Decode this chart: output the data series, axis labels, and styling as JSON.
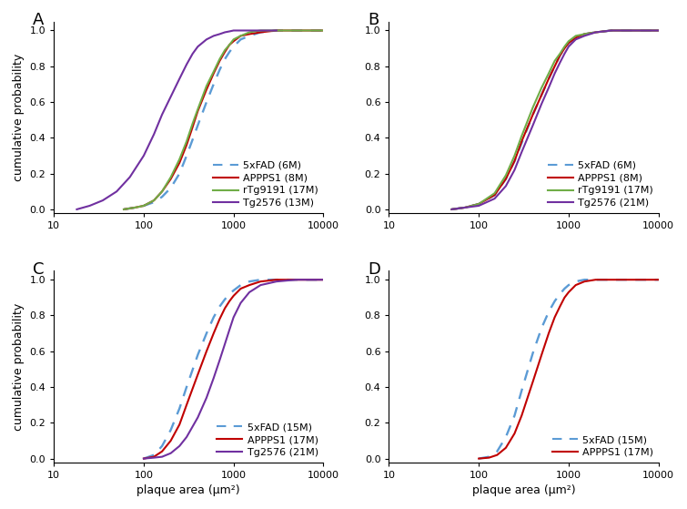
{
  "xlim": [
    10,
    10000
  ],
  "ylim": [
    -0.02,
    1.05
  ],
  "yticks": [
    0,
    0.2,
    0.4,
    0.6,
    0.8,
    1.0
  ],
  "ylabel": "cumulative probability",
  "xlabel": "plaque area (μm²)",
  "panel_A": {
    "lines": [
      {
        "label": "5xFAD (6M)",
        "color": "#5B9BD5",
        "linestyle": "dashed",
        "x": [
          60,
          80,
          100,
          130,
          160,
          200,
          250,
          300,
          350,
          400,
          500,
          600,
          700,
          800,
          900,
          1000,
          1200,
          1500,
          2000,
          3000,
          5000,
          8000,
          10000
        ],
        "y": [
          0,
          0.01,
          0.02,
          0.04,
          0.07,
          0.12,
          0.2,
          0.3,
          0.39,
          0.47,
          0.6,
          0.7,
          0.78,
          0.84,
          0.88,
          0.91,
          0.95,
          0.97,
          0.99,
          1.0,
          1.0,
          1.0,
          1.0
        ]
      },
      {
        "label": "APPPS1 (8M)",
        "color": "#C00000",
        "linestyle": "solid",
        "x": [
          60,
          80,
          100,
          130,
          160,
          200,
          250,
          300,
          350,
          400,
          500,
          600,
          700,
          800,
          900,
          1000,
          1200,
          1500,
          2000,
          3000,
          5000,
          8000,
          10000
        ],
        "y": [
          0,
          0.01,
          0.02,
          0.05,
          0.1,
          0.17,
          0.26,
          0.36,
          0.46,
          0.55,
          0.67,
          0.76,
          0.83,
          0.88,
          0.92,
          0.94,
          0.97,
          0.98,
          0.99,
          1.0,
          1.0,
          1.0,
          1.0
        ]
      },
      {
        "label": "rTg9191 (17M)",
        "color": "#70AD47",
        "linestyle": "solid",
        "x": [
          60,
          80,
          100,
          130,
          160,
          200,
          250,
          300,
          350,
          400,
          500,
          600,
          700,
          800,
          900,
          1000,
          1200,
          1500,
          2000,
          3000,
          5000,
          8000,
          10000
        ],
        "y": [
          0,
          0.01,
          0.02,
          0.05,
          0.1,
          0.18,
          0.28,
          0.38,
          0.48,
          0.56,
          0.69,
          0.77,
          0.84,
          0.89,
          0.92,
          0.95,
          0.97,
          0.99,
          1.0,
          1.0,
          1.0,
          1.0,
          1.0
        ]
      },
      {
        "label": "Tg2576 (13M)",
        "color": "#7030A0",
        "linestyle": "solid",
        "x": [
          18,
          25,
          35,
          50,
          70,
          100,
          130,
          160,
          200,
          250,
          300,
          350,
          400,
          500,
          600,
          700,
          800,
          900,
          1000,
          1200,
          1500,
          2000,
          3000
        ],
        "y": [
          0,
          0.02,
          0.05,
          0.1,
          0.18,
          0.3,
          0.42,
          0.53,
          0.63,
          0.73,
          0.81,
          0.87,
          0.91,
          0.95,
          0.97,
          0.98,
          0.99,
          0.995,
          1.0,
          1.0,
          1.0,
          1.0,
          1.0
        ]
      }
    ]
  },
  "panel_B": {
    "lines": [
      {
        "label": "5xFAD (6M)",
        "color": "#5B9BD5",
        "linestyle": "dashed",
        "x": [
          50,
          70,
          100,
          150,
          200,
          250,
          300,
          400,
          500,
          600,
          700,
          800,
          900,
          1000,
          1200,
          1500,
          2000,
          3000,
          5000,
          8000,
          10000
        ],
        "y": [
          0,
          0.01,
          0.03,
          0.08,
          0.17,
          0.27,
          0.37,
          0.53,
          0.64,
          0.73,
          0.8,
          0.86,
          0.9,
          0.93,
          0.96,
          0.98,
          0.99,
          1.0,
          1.0,
          1.0,
          1.0
        ]
      },
      {
        "label": "APPPS1 (8M)",
        "color": "#C00000",
        "linestyle": "solid",
        "x": [
          50,
          70,
          100,
          150,
          200,
          250,
          300,
          400,
          500,
          600,
          700,
          800,
          900,
          1000,
          1200,
          1500,
          2000,
          3000,
          5000,
          8000,
          10000
        ],
        "y": [
          0,
          0.01,
          0.03,
          0.08,
          0.17,
          0.27,
          0.38,
          0.53,
          0.64,
          0.73,
          0.8,
          0.86,
          0.9,
          0.93,
          0.96,
          0.98,
          0.99,
          1.0,
          1.0,
          1.0,
          1.0
        ]
      },
      {
        "label": "rTg9191 (17M)",
        "color": "#70AD47",
        "linestyle": "solid",
        "x": [
          50,
          70,
          100,
          150,
          200,
          250,
          300,
          400,
          500,
          600,
          700,
          800,
          900,
          1000,
          1200,
          1500,
          2000,
          3000,
          5000,
          8000,
          10000
        ],
        "y": [
          0,
          0.01,
          0.03,
          0.09,
          0.19,
          0.3,
          0.41,
          0.57,
          0.68,
          0.76,
          0.83,
          0.87,
          0.91,
          0.94,
          0.97,
          0.98,
          0.99,
          1.0,
          1.0,
          1.0,
          1.0
        ]
      },
      {
        "label": "Tg2576 (21M)",
        "color": "#7030A0",
        "linestyle": "solid",
        "x": [
          50,
          70,
          100,
          150,
          200,
          250,
          300,
          400,
          500,
          600,
          700,
          800,
          900,
          1000,
          1200,
          1500,
          2000,
          3000,
          5000,
          8000,
          10000
        ],
        "y": [
          0,
          0.01,
          0.02,
          0.06,
          0.13,
          0.22,
          0.32,
          0.47,
          0.59,
          0.68,
          0.76,
          0.82,
          0.87,
          0.91,
          0.95,
          0.97,
          0.99,
          1.0,
          1.0,
          1.0,
          1.0
        ]
      }
    ]
  },
  "panel_C": {
    "lines": [
      {
        "label": "5xFAD (15M)",
        "color": "#5B9BD5",
        "linestyle": "dashed",
        "x": [
          100,
          130,
          160,
          200,
          250,
          300,
          400,
          500,
          600,
          700,
          800,
          900,
          1000,
          1200,
          1500,
          2000,
          3000,
          5000,
          8000,
          10000
        ],
        "y": [
          0,
          0.02,
          0.07,
          0.16,
          0.28,
          0.4,
          0.58,
          0.7,
          0.79,
          0.85,
          0.89,
          0.92,
          0.94,
          0.97,
          0.99,
          1.0,
          1.0,
          1.0,
          1.0,
          1.0
        ]
      },
      {
        "label": "APPPS1 (17M)",
        "color": "#C00000",
        "linestyle": "solid",
        "x": [
          100,
          130,
          160,
          200,
          250,
          300,
          400,
          500,
          600,
          700,
          800,
          900,
          1000,
          1200,
          1500,
          2000,
          3000,
          5000,
          8000,
          10000
        ],
        "y": [
          0,
          0.01,
          0.04,
          0.1,
          0.19,
          0.3,
          0.47,
          0.6,
          0.7,
          0.78,
          0.84,
          0.88,
          0.91,
          0.95,
          0.97,
          0.99,
          1.0,
          1.0,
          1.0,
          1.0
        ]
      },
      {
        "label": "Tg2576 (21M)",
        "color": "#7030A0",
        "linestyle": "solid",
        "x": [
          100,
          130,
          160,
          200,
          250,
          300,
          400,
          500,
          600,
          700,
          800,
          900,
          1000,
          1200,
          1500,
          2000,
          3000,
          5000,
          8000,
          10000
        ],
        "y": [
          0,
          0.005,
          0.01,
          0.03,
          0.07,
          0.12,
          0.23,
          0.34,
          0.45,
          0.55,
          0.64,
          0.72,
          0.79,
          0.87,
          0.93,
          0.97,
          0.99,
          1.0,
          1.0,
          1.0
        ]
      }
    ]
  },
  "panel_D": {
    "lines": [
      {
        "label": "5xFAD (15M)",
        "color": "#5B9BD5",
        "linestyle": "dashed",
        "x": [
          100,
          130,
          160,
          200,
          250,
          300,
          400,
          500,
          600,
          700,
          800,
          900,
          1000,
          1200,
          1500,
          2000,
          3000,
          5000,
          8000,
          10000
        ],
        "y": [
          0,
          0.01,
          0.04,
          0.12,
          0.24,
          0.38,
          0.59,
          0.73,
          0.82,
          0.88,
          0.92,
          0.95,
          0.97,
          0.99,
          1.0,
          1.0,
          1.0,
          1.0,
          1.0,
          1.0
        ]
      },
      {
        "label": "APPPS1 (17M)",
        "color": "#C00000",
        "linestyle": "solid",
        "x": [
          100,
          130,
          160,
          200,
          250,
          300,
          400,
          500,
          600,
          700,
          800,
          900,
          1000,
          1200,
          1500,
          2000,
          3000,
          5000,
          8000,
          10000
        ],
        "y": [
          0,
          0.005,
          0.02,
          0.06,
          0.14,
          0.24,
          0.43,
          0.58,
          0.7,
          0.79,
          0.85,
          0.9,
          0.93,
          0.97,
          0.99,
          1.0,
          1.0,
          1.0,
          1.0,
          1.0
        ]
      }
    ]
  },
  "background_color": "#ffffff",
  "spine_color": "#000000",
  "label_fontsize": 9,
  "tick_fontsize": 8,
  "panel_label_fontsize": 13,
  "legend_fontsize": 8,
  "line_width": 1.5
}
